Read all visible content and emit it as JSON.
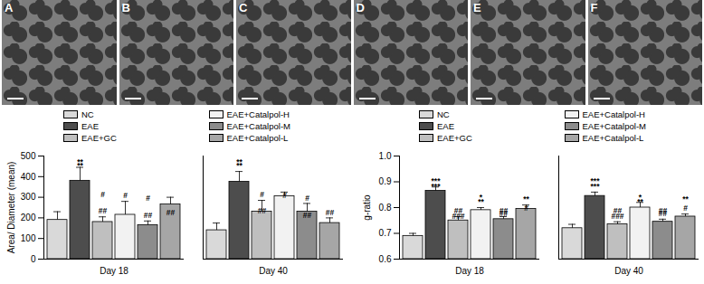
{
  "panels": [
    "A",
    "B",
    "C",
    "D",
    "E",
    "F"
  ],
  "chart_data": [
    {
      "type": "bar",
      "y_label": "Area/ Diameter (mean)",
      "categories": [
        "Day 18",
        "Day 40"
      ],
      "ylim": [
        0,
        500
      ],
      "yticks": [
        0,
        100,
        200,
        300,
        400,
        500
      ],
      "series": [
        {
          "name": "NC",
          "color": "#d9d9d9",
          "values": [
            190,
            140
          ],
          "errors": [
            40,
            35
          ],
          "significance": [
            null,
            null
          ]
        },
        {
          "name": "EAE",
          "color": "#4d4d4d",
          "values": [
            380,
            375
          ],
          "errors": [
            65,
            50
          ],
          "significance": [
            "**",
            "**"
          ]
        },
        {
          "name": "EAE+GC",
          "color": "#bfbfbf",
          "values": [
            180,
            230
          ],
          "errors": [
            25,
            55
          ],
          "significance": [
            "##",
            "#"
          ]
        },
        {
          "name": "EAE+Catalpol-H",
          "color": "#f2f2f2",
          "values": [
            215,
            305
          ],
          "errors": [
            65,
            20
          ],
          "significance": [
            "#",
            null
          ]
        },
        {
          "name": "EAE+Catalpol-M",
          "color": "#8c8c8c",
          "values": [
            165,
            230
          ],
          "errors": [
            20,
            40
          ],
          "significance": [
            "##",
            "#"
          ]
        },
        {
          "name": "EAE+Catalpol-L",
          "color": "#a6a6a6",
          "values": [
            265,
            175
          ],
          "errors": [
            35,
            25
          ],
          "significance": [
            null,
            "##"
          ]
        }
      ]
    },
    {
      "type": "bar",
      "y_label": "g-ratio",
      "categories": [
        "Day 18",
        "Day 40"
      ],
      "ylim": [
        0.6,
        1.0
      ],
      "yticks": [
        0.6,
        0.7,
        0.8,
        0.9,
        {
          "value": 1.0,
          "label": "1.0"
        }
      ],
      "series": [
        {
          "name": "NC",
          "color": "#d9d9d9",
          "values": [
            0.69,
            0.72
          ],
          "errors": [
            0.01,
            0.015
          ],
          "significance": [
            null,
            null
          ]
        },
        {
          "name": "EAE",
          "color": "#4d4d4d",
          "values": [
            0.865,
            0.845
          ],
          "errors": [
            0.015,
            0.015
          ],
          "significance": [
            "***",
            "***"
          ]
        },
        {
          "name": "EAE+GC",
          "color": "#bfbfbf",
          "values": [
            0.75,
            0.735
          ],
          "errors": [
            0.015,
            0.01
          ],
          "significance": [
            "##",
            "###"
          ]
        },
        {
          "name": "EAE+Catalpol-H",
          "color": "#f2f2f2",
          "values": [
            0.79,
            0.8
          ],
          "errors": [
            0.01,
            0.02
          ],
          "significance": [
            "**",
            "*"
          ]
        },
        {
          "name": "EAE+Catalpol-M",
          "color": "#8c8c8c",
          "values": [
            0.755,
            0.745
          ],
          "errors": [
            0.01,
            0.01
          ],
          "significance": [
            "##",
            "##"
          ]
        },
        {
          "name": "EAE+Catalpol-L",
          "color": "#a6a6a6",
          "values": [
            0.795,
            0.765
          ],
          "errors": [
            0.015,
            0.01
          ],
          "significance": [
            "**",
            "#"
          ]
        }
      ]
    }
  ]
}
